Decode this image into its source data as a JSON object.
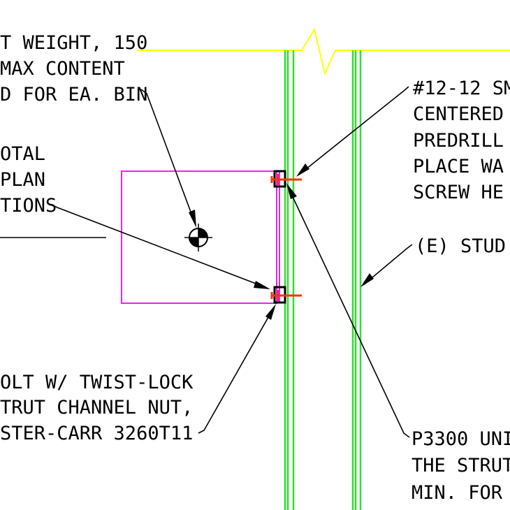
{
  "colors": {
    "background": "#ffffff",
    "text": "#000000",
    "leader": "#000000",
    "ceiling_line": "#ffff00",
    "stud": "#33dd33",
    "bin_outline": "#ee22ee",
    "fastener": "#ff3300",
    "bracket": "#000000"
  },
  "notes": {
    "weight": [
      "T WEIGHT, 150",
      "MAX CONTENT",
      "D FOR EA. BIN"
    ],
    "plan": [
      "OTAL",
      "PLAN",
      "TIONS"
    ],
    "screw": [
      "#12-12 SM",
      "CENTERED",
      "PREDRILL",
      "PLACE WA",
      "SCREW HE"
    ],
    "stud": [
      "(E) STUD"
    ],
    "bolt": [
      "OLT W/ TWIST-LOCK",
      "TRUT CHANNEL NUT,",
      "STER-CARR 3260T11"
    ],
    "strut": [
      "P3300 UNI",
      "THE STRUT",
      "MIN. FOR I"
    ]
  },
  "symbols": {
    "center_of_gravity": "center-of-gravity-symbol",
    "break_line": "break-line-symbol"
  }
}
